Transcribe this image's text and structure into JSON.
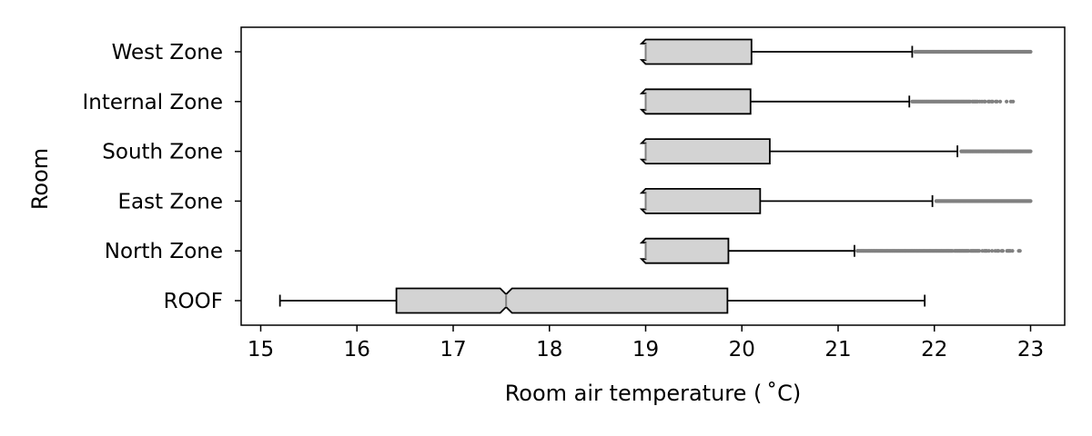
{
  "chart_data": {
    "type": "boxplot",
    "title": "",
    "xlabel": "Room air temperature ( $^\\circ$C)",
    "xlabel_display": "Room air temperature ( ˚C)",
    "ylabel": "Room",
    "xlim": [
      14.8,
      23.4
    ],
    "xticks": [
      15,
      16,
      17,
      18,
      19,
      20,
      21,
      22,
      23
    ],
    "notched": true,
    "grid": false,
    "legend": "none",
    "colors": {
      "box_fill": "#d3d3d3",
      "outlier": "#808080",
      "line": "#000000"
    },
    "series": [
      {
        "category": "West Zone",
        "whisker_low": 19.0,
        "q1": 19.0,
        "median": 19.0,
        "q3": 20.1,
        "whisker_high": 21.77,
        "outlier_range": [
          21.8,
          23.0
        ],
        "outlier_density": "dense"
      },
      {
        "category": "Internal Zone",
        "whisker_low": 19.0,
        "q1": 19.0,
        "median": 19.0,
        "q3": 20.09,
        "whisker_high": 21.74,
        "outlier_range": [
          21.77,
          22.84
        ],
        "outlier_density": "tapering"
      },
      {
        "category": "South Zone",
        "whisker_low": 19.0,
        "q1": 19.0,
        "median": 19.0,
        "q3": 20.29,
        "whisker_high": 22.24,
        "outlier_range": [
          22.28,
          23.0
        ],
        "outlier_density": "dense"
      },
      {
        "category": "East Zone",
        "whisker_low": 19.0,
        "q1": 19.0,
        "median": 19.0,
        "q3": 20.19,
        "whisker_high": 21.98,
        "outlier_range": [
          22.02,
          23.0
        ],
        "outlier_density": "dense"
      },
      {
        "category": "North Zone",
        "whisker_low": 19.0,
        "q1": 19.0,
        "median": 19.0,
        "q3": 19.86,
        "whisker_high": 21.17,
        "outlier_range": [
          21.2,
          23.0
        ],
        "outlier_density": "tapering"
      },
      {
        "category": "ROOF",
        "whisker_low": 15.2,
        "q1": 16.41,
        "median": 17.55,
        "q3": 19.85,
        "whisker_high": 21.9,
        "outlier_range": null,
        "outlier_density": "none"
      }
    ]
  }
}
